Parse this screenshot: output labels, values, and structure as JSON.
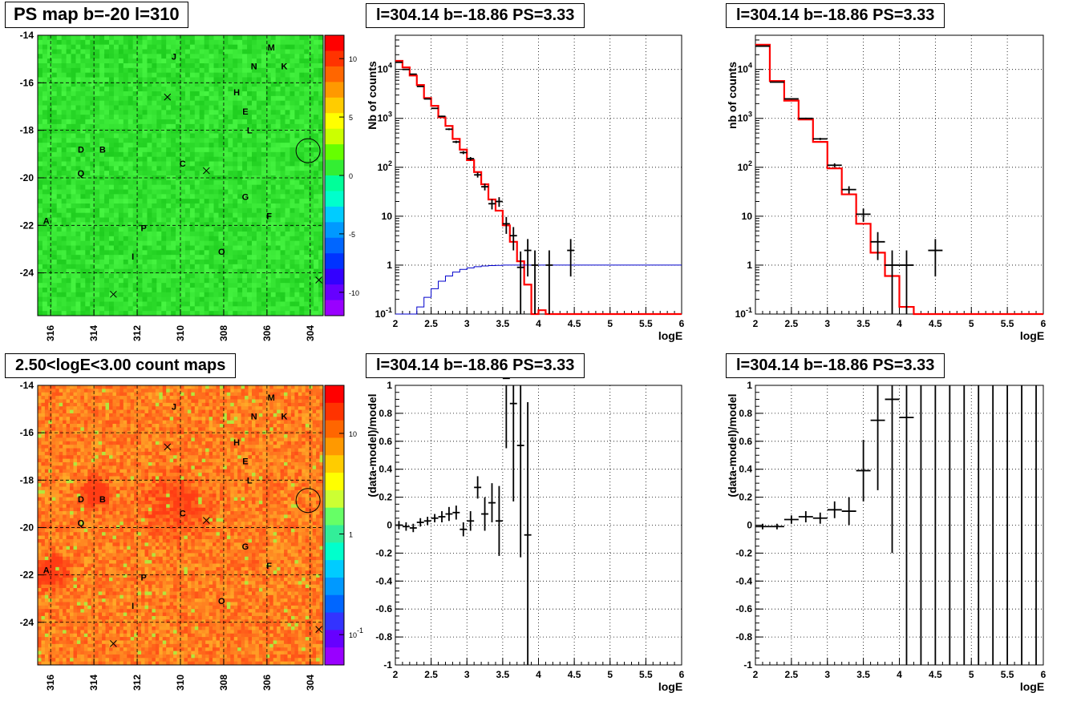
{
  "panels": {
    "map_top": {
      "title": "PS map b=-20 l=310"
    },
    "spec_top": {
      "title": "l=304.14 b=-18.86 PS=3.33"
    },
    "spec_top2": {
      "title": "l=304.14 b=-18.86 PS=3.33"
    },
    "map_bottom": {
      "title": "2.50<logE<3.00 count maps"
    },
    "res_bottom": {
      "title": "l=304.14 b=-18.86 PS=3.33"
    },
    "res_bottom2": {
      "title": "l=304.14 b=-18.86 PS=3.33"
    }
  },
  "colors": {
    "data": "#000000",
    "model": "#ff0000",
    "acceptance": "#0000cc",
    "grid": "#000000",
    "map_ps_background": "#33ee33",
    "map_counts_background": "#ff9900"
  },
  "chart_data": [
    {
      "type": "heatmap",
      "title": "PS map b=-20 l=310",
      "xlabel": "",
      "ylabel": "",
      "xlim": [
        303.4,
        316.6
      ],
      "ylim": [
        -25.8,
        -14
      ],
      "x_reversed": true,
      "x_ticks": [
        "304",
        "306",
        "308",
        "310",
        "312",
        "314",
        "316"
      ],
      "y_ticks": [
        "-24",
        "-22",
        "-20",
        "-18",
        "-16",
        "-14"
      ],
      "colorbar": {
        "scale": "linear",
        "range": [
          -12,
          12
        ],
        "ticks": [
          "-10",
          "-5",
          "0",
          "5",
          "10"
        ]
      },
      "sources": [
        {
          "label": "M",
          "l": 305.8,
          "b": -14.5
        },
        {
          "label": "N",
          "l": 306.6,
          "b": -15.3
        },
        {
          "label": "K",
          "l": 305.2,
          "b": -15.3
        },
        {
          "label": "J",
          "l": 310.3,
          "b": -14.9
        },
        {
          "label": "H",
          "l": 307.4,
          "b": -16.4
        },
        {
          "label": "E",
          "l": 307.0,
          "b": -17.2
        },
        {
          "label": "L",
          "l": 306.8,
          "b": -18.0
        },
        {
          "label": "D",
          "l": 314.6,
          "b": -18.8
        },
        {
          "label": "B",
          "l": 313.6,
          "b": -18.8
        },
        {
          "label": "C",
          "l": 309.9,
          "b": -19.4
        },
        {
          "label": "Q",
          "l": 314.6,
          "b": -19.8
        },
        {
          "label": "G",
          "l": 307.0,
          "b": -20.8
        },
        {
          "label": "F",
          "l": 305.9,
          "b": -21.6
        },
        {
          "label": "A",
          "l": 316.2,
          "b": -21.8
        },
        {
          "label": "P",
          "l": 311.7,
          "b": -22.1
        },
        {
          "label": "O",
          "l": 308.1,
          "b": -23.1
        },
        {
          "label": "I",
          "l": 312.2,
          "b": -23.3
        }
      ],
      "crosses": [
        {
          "l": 310.6,
          "b": -16.6
        },
        {
          "l": 308.8,
          "b": -19.7
        },
        {
          "l": 313.1,
          "b": -24.9
        },
        {
          "l": 303.6,
          "b": -24.3
        }
      ],
      "circle": {
        "l": 304.1,
        "b": -18.86
      }
    },
    {
      "type": "line",
      "title": "l=304.14 b=-18.86 PS=3.33",
      "xlabel": "logE",
      "ylabel": "Nb of counts",
      "xlim": [
        2,
        6
      ],
      "ylim": [
        0.1,
        50000
      ],
      "yscale": "log",
      "grid": true,
      "x_ticks": [
        "2",
        "2.5",
        "3",
        "3.5",
        "4",
        "4.5",
        "5",
        "5.5",
        "6"
      ],
      "y_ticks": [
        "10^-1",
        "1",
        "10",
        "10^2",
        "10^3",
        "10^4"
      ],
      "series": [
        {
          "values_x": [
            2.05,
            2.15,
            2.25,
            2.35,
            2.45,
            2.55,
            2.65,
            2.75,
            2.85,
            2.95,
            3.05,
            3.15,
            3.25,
            3.35,
            3.45,
            3.55,
            3.65,
            3.75,
            3.85,
            3.95,
            4.15,
            4.45
          ],
          "values_y": [
            14000,
            10000,
            8000,
            4500,
            2500,
            1600,
            1100,
            600,
            330,
            200,
            150,
            70,
            40,
            18,
            20,
            7,
            4,
            0.9,
            2,
            1,
            1,
            2
          ]
        },
        {
          "step_x0": 2.0,
          "step_dx": 0.1,
          "values_y": [
            15000,
            11000,
            7500,
            4800,
            2600,
            1800,
            1050,
            700,
            380,
            230,
            140,
            80,
            45,
            22,
            13,
            6.5,
            3,
            1.2,
            0.4,
            0.1,
            0.12,
            0.08,
            0.08,
            0.08,
            0.08,
            0.08,
            0.08,
            0.08,
            0.08,
            0.08,
            0.08,
            0.08,
            0.08,
            0.08,
            0.08,
            0.08,
            0.08,
            0.08,
            0.08,
            0.08
          ]
        },
        {
          "step_x0": 2.0,
          "step_dx": 0.1,
          "values_y": [
            0.04,
            0.06,
            0.09,
            0.14,
            0.22,
            0.33,
            0.47,
            0.6,
            0.72,
            0.82,
            0.88,
            0.93,
            0.96,
            0.98,
            0.99,
            1,
            1,
            1,
            1,
            1,
            1,
            1,
            1,
            1,
            1,
            1,
            1,
            1,
            1,
            1,
            1,
            1,
            1,
            1,
            1,
            1,
            1,
            1,
            1,
            1
          ]
        }
      ]
    },
    {
      "type": "line",
      "title": "l=304.14 b=-18.86 PS=3.33",
      "xlabel": "logE",
      "ylabel": "nb of counts",
      "xlim": [
        2,
        6
      ],
      "ylim": [
        0.1,
        50000
      ],
      "yscale": "log",
      "grid": true,
      "x_ticks": [
        "2",
        "2.5",
        "3",
        "3.5",
        "4",
        "4.5",
        "5",
        "5.5",
        "6"
      ],
      "y_ticks": [
        "10^-1",
        "1",
        "10",
        "10^2",
        "10^3",
        "10^4"
      ],
      "series": [
        {
          "values_x": [
            2.1,
            2.3,
            2.5,
            2.7,
            2.9,
            3.1,
            3.3,
            3.5,
            3.7,
            3.9,
            4.1,
            4.5
          ],
          "values_y": [
            30000,
            5500,
            2500,
            1000,
            380,
            110,
            35,
            11,
            3,
            1,
            1,
            2
          ]
        },
        {
          "step_x0": 2.0,
          "step_dx": 0.2,
          "values_y": [
            32000,
            5800,
            2300,
            950,
            330,
            95,
            28,
            7,
            1.8,
            0.6,
            0.14,
            0.08,
            0.08,
            0.08,
            0.08,
            0.08,
            0.08,
            0.08,
            0.08,
            0.08
          ]
        }
      ]
    },
    {
      "type": "heatmap",
      "title": "2.50<logE<3.00 count maps",
      "xlabel": "",
      "ylabel": "",
      "xlim": [
        303.4,
        316.6
      ],
      "ylim": [
        -25.8,
        -14
      ],
      "x_reversed": true,
      "x_ticks": [
        "304",
        "306",
        "308",
        "310",
        "312",
        "314",
        "316"
      ],
      "y_ticks": [
        "-24",
        "-22",
        "-20",
        "-18",
        "-16",
        "-14"
      ],
      "colorbar": {
        "scale": "log",
        "range": [
          0.05,
          30
        ],
        "ticks": [
          "10^-1",
          "1",
          "10"
        ]
      }
    },
    {
      "type": "scatter",
      "title": "l=304.14 b=-18.86 PS=3.33",
      "xlabel": "logE",
      "ylabel": "(data-model)/model",
      "xlim": [
        2,
        6
      ],
      "ylim": [
        -1,
        1
      ],
      "grid": true,
      "x_ticks": [
        "2",
        "2.5",
        "3",
        "3.5",
        "4",
        "4.5",
        "5",
        "5.5",
        "6"
      ],
      "y_ticks": [
        "-1",
        "-0.8",
        "-0.6",
        "-0.4",
        "-0.2",
        "0",
        "0.2",
        "0.4",
        "0.6",
        "0.8",
        "1"
      ],
      "x": [
        2.05,
        2.15,
        2.25,
        2.35,
        2.45,
        2.55,
        2.65,
        2.75,
        2.85,
        2.95,
        3.05,
        3.15,
        3.25,
        3.35,
        3.45,
        3.55,
        3.65,
        3.75,
        3.85
      ],
      "y": [
        0.0,
        -0.01,
        -0.02,
        0.02,
        0.03,
        0.05,
        0.06,
        0.08,
        0.09,
        -0.03,
        0.03,
        0.27,
        0.08,
        0.16,
        0.03,
        1.05,
        0.87,
        0.57,
        -0.07
      ],
      "yerr": [
        0.03,
        0.03,
        0.03,
        0.03,
        0.03,
        0.03,
        0.04,
        0.05,
        0.05,
        0.05,
        0.07,
        0.08,
        0.12,
        0.14,
        0.25,
        0.5,
        0.7,
        0.8,
        0.95
      ]
    },
    {
      "type": "scatter",
      "title": "l=304.14 b=-18.86 PS=3.33",
      "xlabel": "logE",
      "ylabel": "(data-model)/model",
      "xlim": [
        2,
        6
      ],
      "ylim": [
        -1,
        1
      ],
      "grid": true,
      "x_ticks": [
        "2",
        "2.5",
        "3",
        "3.5",
        "4",
        "4.5",
        "5",
        "5.5",
        "6"
      ],
      "y_ticks": [
        "-1",
        "-0.8",
        "-0.6",
        "-0.4",
        "-0.2",
        "0",
        "0.2",
        "0.4",
        "0.6",
        "0.8",
        "1"
      ],
      "x": [
        2.1,
        2.3,
        2.5,
        2.7,
        2.9,
        3.1,
        3.3,
        3.5,
        3.7,
        3.9,
        4.1,
        4.3,
        4.5,
        4.7,
        4.9,
        5.1,
        5.3,
        5.5,
        5.7,
        5.9
      ],
      "y": [
        -0.01,
        -0.01,
        0.04,
        0.06,
        0.05,
        0.11,
        0.1,
        0.39,
        0.75,
        0.9,
        0.77,
        null,
        null,
        null,
        null,
        null,
        null,
        null,
        null,
        null
      ],
      "yerr": [
        0.02,
        0.02,
        0.03,
        0.04,
        0.04,
        0.06,
        0.1,
        0.22,
        0.5,
        1.1,
        2.0,
        2,
        2,
        2,
        2,
        2,
        2,
        2,
        2,
        2
      ]
    }
  ]
}
